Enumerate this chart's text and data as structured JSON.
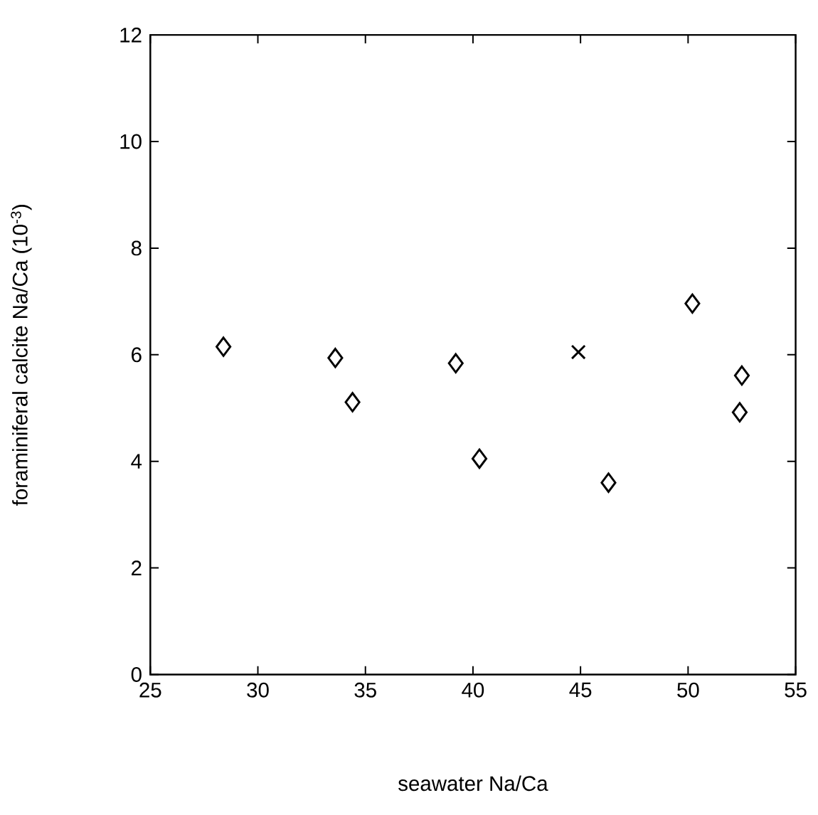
{
  "chart_data": {
    "type": "scatter",
    "xlabel": "seawater Na/Ca",
    "ylabel": "foraminiferal calcite Na/Ca (10$^{-3}$)",
    "xlim": [
      25,
      55
    ],
    "xticks": [
      25,
      30,
      35,
      40,
      45,
      50,
      55
    ],
    "ylim": [
      0,
      12
    ],
    "yticks": [
      0,
      2,
      4,
      6,
      8,
      10,
      12
    ],
    "grid": false,
    "series": [
      {
        "color": "#000000",
        "marker": "diamond",
        "x": [
          28.4,
          52.4
        ],
        "values": [
          6.15,
          4.92
        ]
      },
      {
        "color": "#000000",
        "marker": "diamond",
        "x": [
          33.6,
          39.2,
          50.2,
          52.5
        ],
        "values": [
          5.94,
          5.84,
          6.96,
          5.61
        ]
      },
      {
        "color": "#000000",
        "marker": "diamond",
        "x": [
          34.4,
          40.3,
          46.3
        ],
        "values": [
          5.11,
          4.05,
          3.6
        ]
      },
      {
        "color": "#000000",
        "marker": "cross",
        "x": [
          44.9
        ],
        "values": [
          6.05
        ]
      }
    ]
  }
}
